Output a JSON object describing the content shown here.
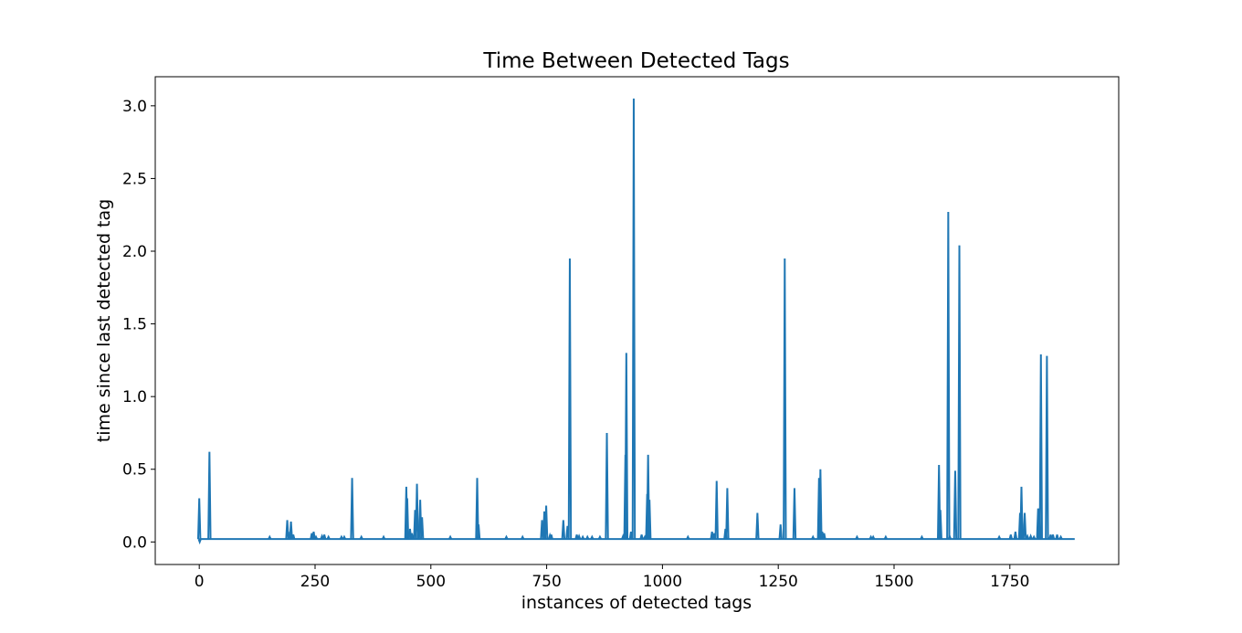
{
  "chart_data": {
    "type": "line",
    "title": "Time Between Detected Tags",
    "xlabel": "instances of detected tags",
    "ylabel": "time since last detected tag",
    "xlim": [
      -95,
      1985
    ],
    "ylim": [
      -0.155,
      3.2
    ],
    "x_ticks": [
      0,
      250,
      500,
      750,
      1000,
      1250,
      1500,
      1750
    ],
    "x_tick_labels": [
      "0",
      "250",
      "500",
      "750",
      "1000",
      "1250",
      "1500",
      "1750"
    ],
    "y_ticks": [
      0.0,
      0.5,
      1.0,
      1.5,
      2.0,
      2.5,
      3.0
    ],
    "y_tick_labels": [
      "0.0",
      "0.5",
      "1.0",
      "1.5",
      "2.0",
      "2.5",
      "3.0"
    ],
    "grid": false,
    "line_color": "#1f77b4",
    "series": [
      {
        "baseline": 0.02,
        "x_range": [
          0,
          1890
        ],
        "spikes": [
          {
            "x": 0,
            "y": 0.3
          },
          {
            "x": 1,
            "y": 0.0
          },
          {
            "x": 22,
            "y": 0.62
          },
          {
            "x": 152,
            "y": 0.035
          },
          {
            "x": 190,
            "y": 0.15
          },
          {
            "x": 196,
            "y": 0.07
          },
          {
            "x": 198,
            "y": 0.14
          },
          {
            "x": 203,
            "y": 0.05
          },
          {
            "x": 243,
            "y": 0.06
          },
          {
            "x": 247,
            "y": 0.07
          },
          {
            "x": 252,
            "y": 0.035
          },
          {
            "x": 265,
            "y": 0.04
          },
          {
            "x": 270,
            "y": 0.05
          },
          {
            "x": 279,
            "y": 0.035
          },
          {
            "x": 307,
            "y": 0.035
          },
          {
            "x": 313,
            "y": 0.035
          },
          {
            "x": 330,
            "y": 0.44
          },
          {
            "x": 350,
            "y": 0.035
          },
          {
            "x": 398,
            "y": 0.035
          },
          {
            "x": 447,
            "y": 0.38
          },
          {
            "x": 449,
            "y": 0.3
          },
          {
            "x": 455,
            "y": 0.09
          },
          {
            "x": 459,
            "y": 0.06
          },
          {
            "x": 466,
            "y": 0.22
          },
          {
            "x": 470,
            "y": 0.4
          },
          {
            "x": 477,
            "y": 0.29
          },
          {
            "x": 481,
            "y": 0.17
          },
          {
            "x": 542,
            "y": 0.035
          },
          {
            "x": 600,
            "y": 0.44
          },
          {
            "x": 603,
            "y": 0.12
          },
          {
            "x": 663,
            "y": 0.035
          },
          {
            "x": 698,
            "y": 0.035
          },
          {
            "x": 740,
            "y": 0.15
          },
          {
            "x": 745,
            "y": 0.21
          },
          {
            "x": 749,
            "y": 0.25
          },
          {
            "x": 757,
            "y": 0.045
          },
          {
            "x": 760,
            "y": 0.05
          },
          {
            "x": 786,
            "y": 0.15
          },
          {
            "x": 795,
            "y": 0.11
          },
          {
            "x": 800,
            "y": 1.95
          },
          {
            "x": 815,
            "y": 0.05
          },
          {
            "x": 820,
            "y": 0.04
          },
          {
            "x": 828,
            "y": 0.035
          },
          {
            "x": 838,
            "y": 0.035
          },
          {
            "x": 848,
            "y": 0.035
          },
          {
            "x": 865,
            "y": 0.035
          },
          {
            "x": 880,
            "y": 0.75
          },
          {
            "x": 915,
            "y": 0.04
          },
          {
            "x": 920,
            "y": 0.6
          },
          {
            "x": 922,
            "y": 1.3
          },
          {
            "x": 932,
            "y": 0.07
          },
          {
            "x": 938,
            "y": 3.05
          },
          {
            "x": 955,
            "y": 0.05
          },
          {
            "x": 962,
            "y": 0.035
          },
          {
            "x": 967,
            "y": 0.33
          },
          {
            "x": 969,
            "y": 0.6
          },
          {
            "x": 972,
            "y": 0.29
          },
          {
            "x": 1055,
            "y": 0.035
          },
          {
            "x": 1107,
            "y": 0.07
          },
          {
            "x": 1112,
            "y": 0.06
          },
          {
            "x": 1117,
            "y": 0.42
          },
          {
            "x": 1136,
            "y": 0.09
          },
          {
            "x": 1140,
            "y": 0.37
          },
          {
            "x": 1205,
            "y": 0.2
          },
          {
            "x": 1255,
            "y": 0.12
          },
          {
            "x": 1264,
            "y": 1.95
          },
          {
            "x": 1285,
            "y": 0.37
          },
          {
            "x": 1325,
            "y": 0.035
          },
          {
            "x": 1338,
            "y": 0.44
          },
          {
            "x": 1341,
            "y": 0.5
          },
          {
            "x": 1345,
            "y": 0.07
          },
          {
            "x": 1349,
            "y": 0.06
          },
          {
            "x": 1420,
            "y": 0.035
          },
          {
            "x": 1450,
            "y": 0.035
          },
          {
            "x": 1455,
            "y": 0.035
          },
          {
            "x": 1482,
            "y": 0.035
          },
          {
            "x": 1560,
            "y": 0.035
          },
          {
            "x": 1597,
            "y": 0.53
          },
          {
            "x": 1600,
            "y": 0.22
          },
          {
            "x": 1617,
            "y": 2.27
          },
          {
            "x": 1620,
            "y": 0.04
          },
          {
            "x": 1632,
            "y": 0.49
          },
          {
            "x": 1641,
            "y": 2.04
          },
          {
            "x": 1727,
            "y": 0.035
          },
          {
            "x": 1752,
            "y": 0.05
          },
          {
            "x": 1762,
            "y": 0.07
          },
          {
            "x": 1772,
            "y": 0.2
          },
          {
            "x": 1775,
            "y": 0.38
          },
          {
            "x": 1782,
            "y": 0.2
          },
          {
            "x": 1788,
            "y": 0.04
          },
          {
            "x": 1795,
            "y": 0.04
          },
          {
            "x": 1802,
            "y": 0.035
          },
          {
            "x": 1811,
            "y": 0.23
          },
          {
            "x": 1814,
            "y": 0.23
          },
          {
            "x": 1817,
            "y": 1.29
          },
          {
            "x": 1830,
            "y": 1.28
          },
          {
            "x": 1838,
            "y": 0.05
          },
          {
            "x": 1843,
            "y": 0.05
          },
          {
            "x": 1852,
            "y": 0.05
          },
          {
            "x": 1860,
            "y": 0.035
          }
        ]
      }
    ]
  }
}
